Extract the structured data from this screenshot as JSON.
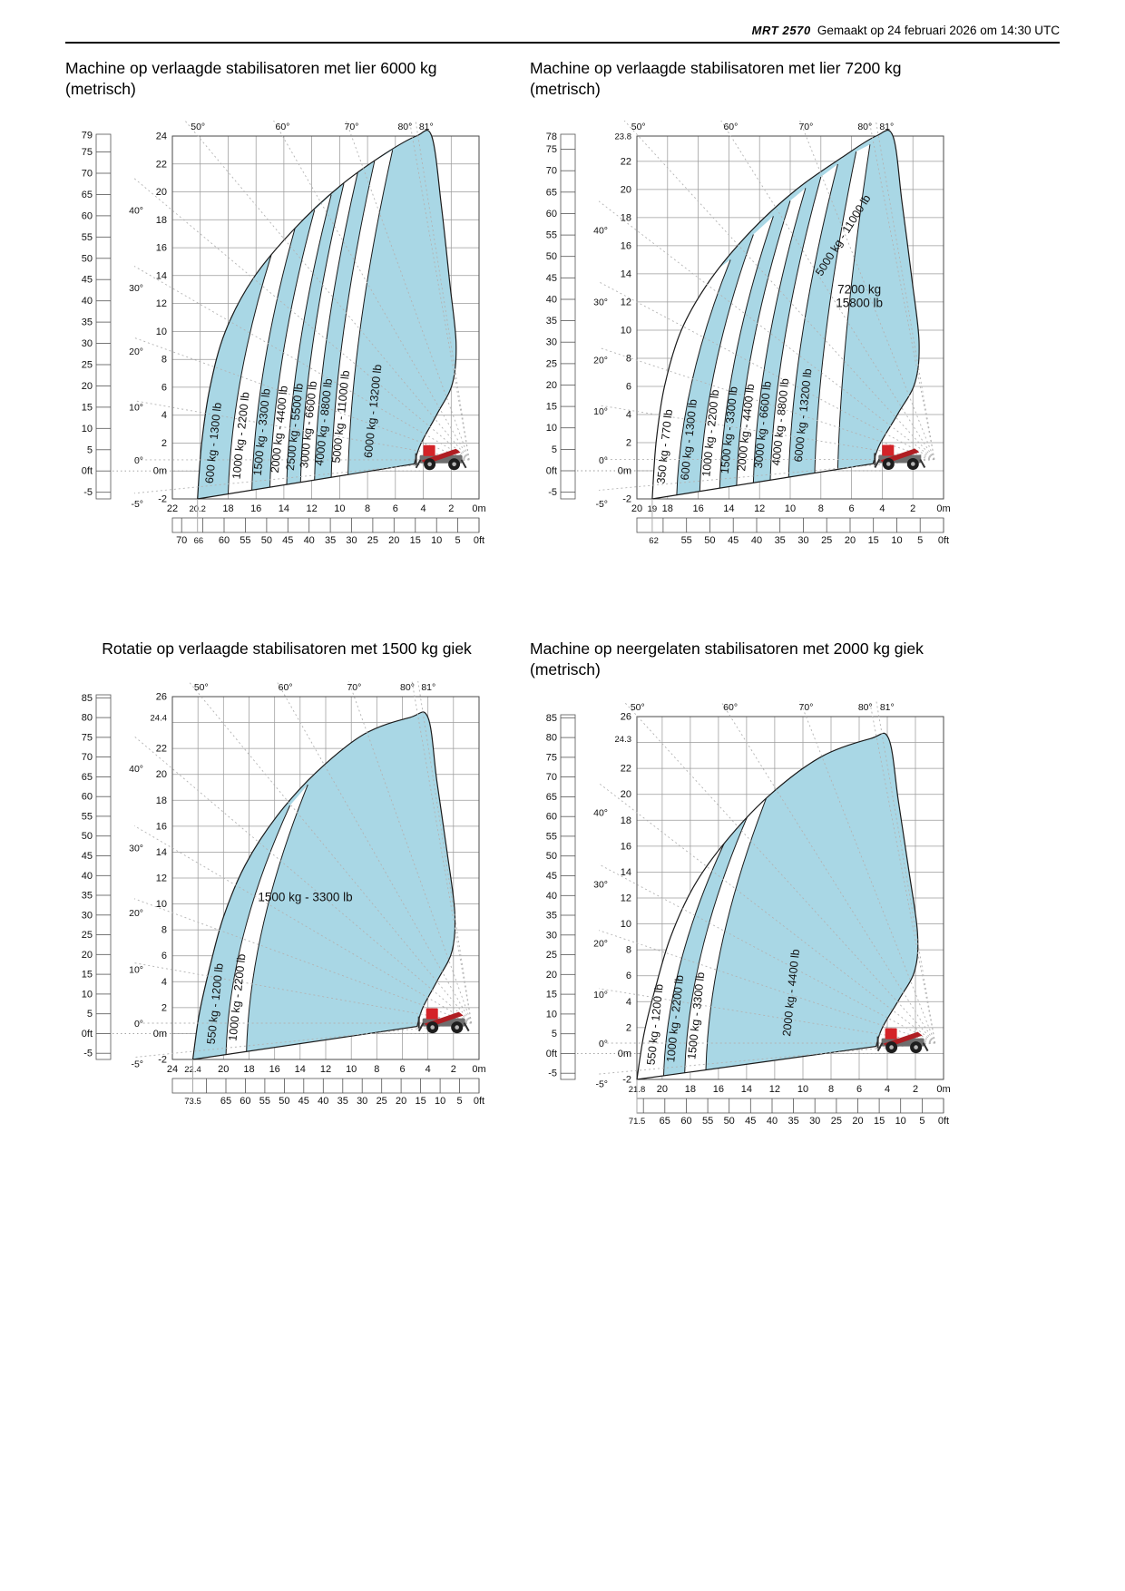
{
  "header": {
    "brand": "MRT 2570",
    "generated_text": "Gemaakt op 24 februari 2026 om 14:30 UTC"
  },
  "charts": [
    {
      "title": "Machine op verlaagde stabilisatoren met lier 6000 kg (metrisch)",
      "left_ft_ticks": [
        "79",
        "75",
        "70",
        "65",
        "60",
        "55",
        "50",
        "45",
        "40",
        "35",
        "30",
        "25",
        "20",
        "15",
        "10",
        "5",
        "0ft",
        "-5"
      ],
      "left_m_ticks": [
        "24",
        "22",
        "20",
        "18",
        "16",
        "14",
        "12",
        "10",
        "8",
        "6",
        "4",
        "2",
        "0m",
        "-2"
      ],
      "left_angle_labels": [
        "40°",
        "30°",
        "20°",
        "10°",
        "0°",
        "-5°"
      ],
      "top_angle_labels": [
        "50°",
        "60°",
        "70°",
        "80°",
        "81°"
      ],
      "bottom_m_ticks": [
        "22",
        "20.2",
        "18",
        "16",
        "14",
        "12",
        "10",
        "8",
        "6",
        "4",
        "2",
        "0m"
      ],
      "bottom_ft_ticks": [
        "70",
        "66",
        "60",
        "55",
        "50",
        "45",
        "40",
        "35",
        "30",
        "25",
        "20",
        "15",
        "10",
        "5",
        "0ft"
      ],
      "reach_marker": {
        "m": "20.2",
        "ft": "66"
      },
      "height_marker": null,
      "bands": [
        {
          "label": "600 kg - 1300 lb",
          "fill": "blue"
        },
        {
          "label": "1000 kg - 2200 lb",
          "fill": "white"
        },
        {
          "label": "1500 kg - 3300 lb",
          "fill": "blue"
        },
        {
          "label": "2000 kg - 4400 lb",
          "fill": "white"
        },
        {
          "label": "2500 kg - 5500 lb",
          "fill": "blue"
        },
        {
          "label": "3000 kg - 6600 lb",
          "fill": "white"
        },
        {
          "label": "4000 kg - 8800 lb",
          "fill": "blue"
        },
        {
          "label": "5000 kg - 11000 lb",
          "fill": "white"
        },
        {
          "label": "6000 kg - 13200 lb",
          "fill": "blue"
        }
      ],
      "corner_label": null,
      "diagonal_label": null
    },
    {
      "title": "Machine op verlaagde stabilisatoren met lier 7200 kg (metrisch)",
      "left_ft_ticks": [
        "78",
        "75",
        "70",
        "65",
        "60",
        "55",
        "50",
        "45",
        "40",
        "35",
        "30",
        "25",
        "20",
        "15",
        "10",
        "5",
        "0ft",
        "-5"
      ],
      "left_m_ticks": [
        "23.8",
        "22",
        "20",
        "18",
        "16",
        "14",
        "12",
        "10",
        "8",
        "6",
        "4",
        "2",
        "0m",
        "-2"
      ],
      "left_angle_labels": [
        "40°",
        "30°",
        "20°",
        "10°",
        "0°",
        "-5°"
      ],
      "top_angle_labels": [
        "50°",
        "60°",
        "70°",
        "80°",
        "81°"
      ],
      "bottom_m_ticks": [
        "20",
        "19",
        "18",
        "16",
        "14",
        "12",
        "10",
        "8",
        "6",
        "4",
        "2",
        "0m"
      ],
      "bottom_ft_ticks": [
        "62",
        "55",
        "50",
        "45",
        "40",
        "35",
        "30",
        "25",
        "20",
        "15",
        "10",
        "5",
        "0ft"
      ],
      "reach_marker": {
        "m": "19",
        "ft": "62"
      },
      "height_marker": "23.8",
      "bands": [
        {
          "label": "350 kg - 770 lb",
          "fill": "white"
        },
        {
          "label": "600 kg - 1300 lb",
          "fill": "blue"
        },
        {
          "label": "1000 kg - 2200 lb",
          "fill": "white"
        },
        {
          "label": "1500 kg - 3300 lb",
          "fill": "blue"
        },
        {
          "label": "2000 kg - 4400 lb",
          "fill": "white"
        },
        {
          "label": "3000 kg - 6600 lb",
          "fill": "blue"
        },
        {
          "label": "4000 kg - 8800 lb",
          "fill": "white"
        },
        {
          "label": "6000 kg - 13200 lb",
          "fill": "blue"
        },
        {
          "label": "",
          "fill": "white"
        },
        {
          "label": "",
          "fill": "blue"
        }
      ],
      "corner_label": [
        "7200 kg",
        "15800 lb"
      ],
      "diagonal_label": "5000 kg - 11000 lb"
    },
    {
      "title": "Rotatie op verlaagde stabilisatoren met 1500 kg giek",
      "left_ft_ticks": [
        "85",
        "80",
        "75",
        "70",
        "65",
        "60",
        "55",
        "50",
        "45",
        "40",
        "35",
        "30",
        "25",
        "20",
        "15",
        "10",
        "5",
        "0ft",
        "-5"
      ],
      "left_m_ticks": [
        "26",
        "24.4",
        "22",
        "20",
        "18",
        "16",
        "14",
        "12",
        "10",
        "8",
        "6",
        "4",
        "2",
        "0m",
        "-2"
      ],
      "left_angle_labels": [
        "40°",
        "30°",
        "20°",
        "10°",
        "0°",
        "-5°"
      ],
      "top_angle_labels": [
        "50°",
        "60°",
        "70°",
        "80°",
        "81°"
      ],
      "bottom_m_ticks": [
        "24",
        "22.4",
        "20",
        "18",
        "16",
        "14",
        "12",
        "10",
        "8",
        "6",
        "4",
        "2",
        "0m"
      ],
      "bottom_ft_ticks": [
        "73.5",
        "65",
        "60",
        "55",
        "50",
        "45",
        "40",
        "35",
        "30",
        "25",
        "20",
        "15",
        "10",
        "5",
        "0ft"
      ],
      "reach_marker": {
        "m": "22.4",
        "ft": "73.5"
      },
      "height_marker": "24.4",
      "bands": [
        {
          "label": "550 kg - 1200 lb",
          "fill": "blue"
        },
        {
          "label": "1000 kg - 2200 lb",
          "fill": "white"
        },
        {
          "label": "1500 kg - 3300 lb",
          "fill": "blue"
        }
      ],
      "corner_label": null,
      "diagonal_label": null
    },
    {
      "title": "Machine op neergelaten stabilisatoren met 2000 kg giek (metrisch)",
      "left_ft_ticks": [
        "85",
        "80",
        "75",
        "70",
        "65",
        "60",
        "55",
        "50",
        "45",
        "40",
        "35",
        "30",
        "25",
        "20",
        "15",
        "10",
        "5",
        "0ft",
        "-5"
      ],
      "left_m_ticks": [
        "26",
        "24.3",
        "22",
        "20",
        "18",
        "16",
        "14",
        "12",
        "10",
        "8",
        "6",
        "4",
        "2",
        "0m",
        "-2"
      ],
      "left_angle_labels": [
        "40°",
        "30°",
        "20°",
        "10°",
        "0°",
        "-5°"
      ],
      "top_angle_labels": [
        "50°",
        "60°",
        "70°",
        "80°",
        "81°"
      ],
      "bottom_m_ticks": [
        "21.8",
        "20",
        "18",
        "16",
        "14",
        "12",
        "10",
        "8",
        "6",
        "4",
        "2",
        "0m"
      ],
      "bottom_ft_ticks": [
        "71.5",
        "65",
        "60",
        "55",
        "50",
        "45",
        "40",
        "35",
        "30",
        "25",
        "20",
        "15",
        "10",
        "5",
        "0ft"
      ],
      "reach_marker": {
        "m": "21.8",
        "ft": "71.5"
      },
      "height_marker": "24.3",
      "bands": [
        {
          "label": "550 kg - 1200 lb",
          "fill": "white"
        },
        {
          "label": "1000 kg - 2200 lb",
          "fill": "blue"
        },
        {
          "label": "1500 kg - 3300 lb",
          "fill": "white"
        },
        {
          "label": "2000 kg - 4400 lb",
          "fill": "blue"
        }
      ],
      "corner_label": null,
      "diagonal_label": null
    }
  ],
  "chart_data": [
    {
      "type": "area",
      "title": "Machine op verlaagde stabilisatoren met lier 6000 kg (metrisch)",
      "units": {
        "primary": "m",
        "secondary": "ft"
      },
      "max_outreach": {
        "m": 20.2,
        "ft": 66
      },
      "max_height": {
        "m": 24,
        "ft": 79
      },
      "x_axis_range_m": [
        0,
        22
      ],
      "y_axis_range_m": [
        -2,
        24
      ],
      "boom_angles_deg": [
        -5,
        0,
        10,
        20,
        30,
        40,
        50,
        60,
        70,
        80,
        81
      ],
      "capacity_zones": [
        {
          "kg": 600,
          "lb": 1300
        },
        {
          "kg": 1000,
          "lb": 2200
        },
        {
          "kg": 1500,
          "lb": 3300
        },
        {
          "kg": 2000,
          "lb": 4400
        },
        {
          "kg": 2500,
          "lb": 5500
        },
        {
          "kg": 3000,
          "lb": 6600
        },
        {
          "kg": 4000,
          "lb": 8800
        },
        {
          "kg": 5000,
          "lb": 11000
        },
        {
          "kg": 6000,
          "lb": 13200
        }
      ]
    },
    {
      "type": "area",
      "title": "Machine op verlaagde stabilisatoren met lier 7200 kg (metrisch)",
      "units": {
        "primary": "m",
        "secondary": "ft"
      },
      "max_outreach": {
        "m": 19,
        "ft": 62
      },
      "max_height": {
        "m": 23.8,
        "ft": 78
      },
      "x_axis_range_m": [
        0,
        20
      ],
      "y_axis_range_m": [
        -2,
        23.8
      ],
      "boom_angles_deg": [
        -5,
        0,
        10,
        20,
        30,
        40,
        50,
        60,
        70,
        80,
        81
      ],
      "capacity_zones": [
        {
          "kg": 350,
          "lb": 770
        },
        {
          "kg": 600,
          "lb": 1300
        },
        {
          "kg": 1000,
          "lb": 2200
        },
        {
          "kg": 1500,
          "lb": 3300
        },
        {
          "kg": 2000,
          "lb": 4400
        },
        {
          "kg": 3000,
          "lb": 6600
        },
        {
          "kg": 4000,
          "lb": 8800
        },
        {
          "kg": 5000,
          "lb": 11000
        },
        {
          "kg": 6000,
          "lb": 13200
        },
        {
          "kg": 7200,
          "lb": 15800
        }
      ]
    },
    {
      "type": "area",
      "title": "Rotatie op verlaagde stabilisatoren met 1500 kg giek",
      "units": {
        "primary": "m",
        "secondary": "ft"
      },
      "max_outreach": {
        "m": 22.4,
        "ft": 73.5
      },
      "max_height": {
        "m": 24.4,
        "ft": 80
      },
      "x_axis_range_m": [
        0,
        24
      ],
      "y_axis_range_m": [
        -2,
        26
      ],
      "boom_angles_deg": [
        -5,
        0,
        10,
        20,
        30,
        40,
        50,
        60,
        70,
        80,
        81
      ],
      "capacity_zones": [
        {
          "kg": 550,
          "lb": 1200
        },
        {
          "kg": 1000,
          "lb": 2200
        },
        {
          "kg": 1500,
          "lb": 3300
        }
      ]
    },
    {
      "type": "area",
      "title": "Machine op neergelaten stabilisatoren met 2000 kg giek (metrisch)",
      "units": {
        "primary": "m",
        "secondary": "ft"
      },
      "max_outreach": {
        "m": 21.8,
        "ft": 71.5
      },
      "max_height": {
        "m": 24.3,
        "ft": 80
      },
      "x_axis_range_m": [
        0,
        21.8
      ],
      "y_axis_range_m": [
        -2,
        26
      ],
      "boom_angles_deg": [
        -5,
        0,
        10,
        20,
        30,
        40,
        50,
        60,
        70,
        80,
        81
      ],
      "capacity_zones": [
        {
          "kg": 550,
          "lb": 1200
        },
        {
          "kg": 1000,
          "lb": 2200
        },
        {
          "kg": 1500,
          "lb": 3300
        },
        {
          "kg": 2000,
          "lb": 4400
        }
      ]
    }
  ]
}
